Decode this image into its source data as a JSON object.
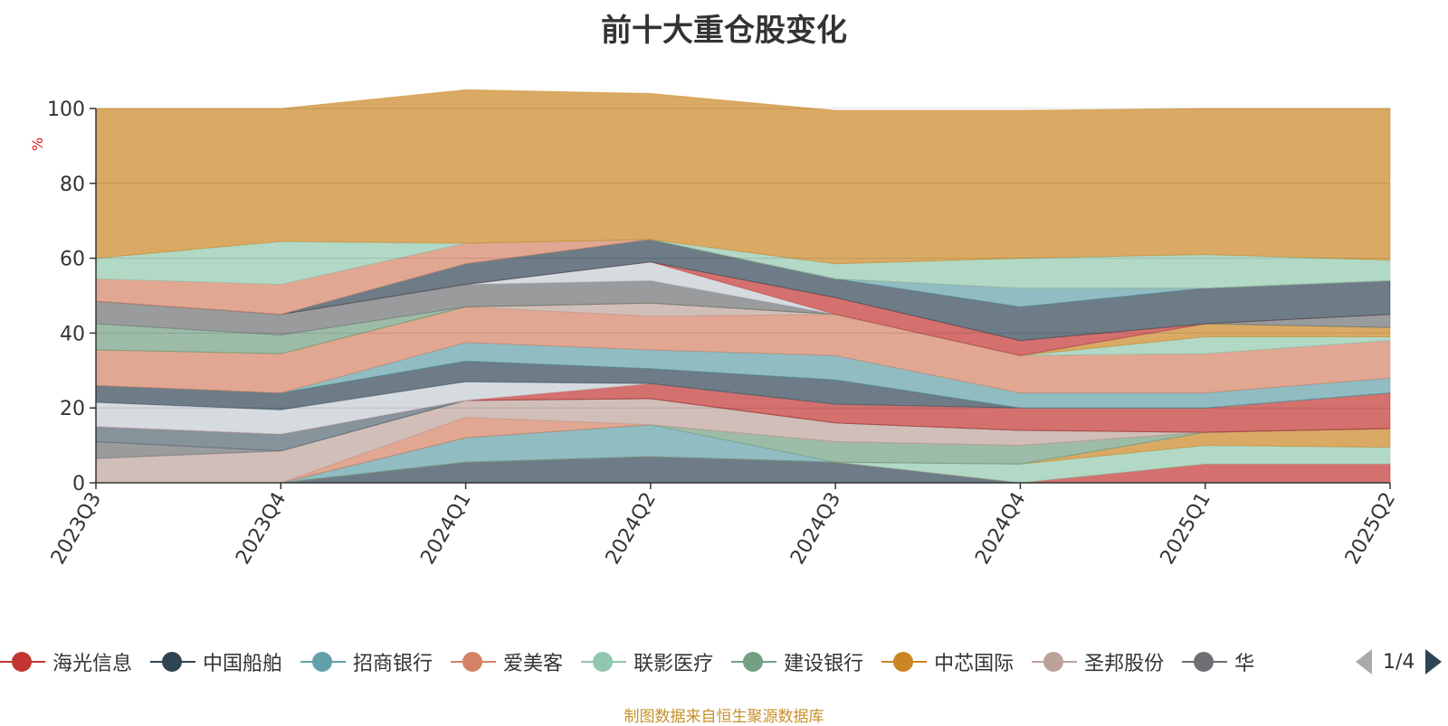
{
  "title": "前十大重仓股变化",
  "unit": "%",
  "footer": "制图数据来自恒生聚源数据库",
  "pager": "1/4",
  "chart_data": {
    "type": "area",
    "stacked": true,
    "ylim": [
      0,
      100
    ],
    "yticks": [
      0,
      20,
      40,
      60,
      80,
      100
    ],
    "categories": [
      "2023Q3",
      "2023Q4",
      "2024Q1",
      "2024Q2",
      "2024Q3",
      "2024Q4",
      "2025Q1",
      "2025Q2"
    ],
    "series": [
      {
        "name": "中国船舶",
        "color": "#2f4554",
        "values": [
          0,
          0,
          5.5,
          7,
          5.5,
          0,
          0,
          0
        ]
      },
      {
        "name": "海光信息",
        "color": "#c23531",
        "values": [
          0,
          0,
          0,
          0,
          0,
          0,
          5,
          5
        ]
      },
      {
        "name": "联影医疗",
        "color": "#91c7ae",
        "values": [
          0,
          0,
          0,
          0,
          0,
          5,
          5,
          4.5
        ]
      },
      {
        "name": "中芯国际",
        "color": "#ca8622",
        "values": [
          0,
          0,
          0,
          0,
          0,
          0,
          3.5,
          5
        ]
      },
      {
        "name": "招商银行",
        "color": "#61a0a8",
        "values": [
          0,
          0,
          6.5,
          8.5,
          0,
          0,
          0,
          0
        ]
      },
      {
        "name": "建设银行",
        "color": "#749f83",
        "values": [
          0,
          0,
          0,
          0,
          5.5,
          5,
          0,
          0
        ]
      },
      {
        "name": "爱美客",
        "color": "#d48265",
        "values": [
          0,
          0,
          5.5,
          0,
          0,
          0,
          0,
          0
        ]
      },
      {
        "name": "圣邦股份",
        "color": "#bda29a",
        "values": [
          6.5,
          8.5,
          4.5,
          7,
          5,
          4,
          0,
          0
        ]
      },
      {
        "name": "华",
        "color": "#6e7074",
        "values": [
          4.5,
          0,
          0,
          0,
          0,
          0,
          0,
          0
        ]
      },
      {
        "name": "",
        "color": "#546570",
        "values": [
          4,
          4.5,
          0,
          0,
          0,
          0,
          0,
          0
        ]
      },
      {
        "name": "",
        "color": "#c23531",
        "values": [
          0,
          0,
          0,
          4,
          5,
          6,
          6.5,
          9.5
        ]
      },
      {
        "name": "",
        "color": "#c4ccd3",
        "values": [
          6.5,
          6.5,
          5,
          0,
          0,
          0,
          0,
          0
        ]
      },
      {
        "name": "",
        "color": "#2f4554",
        "values": [
          4.5,
          4.5,
          5.5,
          4,
          6.5,
          0,
          0,
          0
        ]
      },
      {
        "name": "",
        "color": "#61a0a8",
        "values": [
          0,
          0,
          5,
          5,
          6.5,
          4,
          4,
          4
        ]
      },
      {
        "name": "",
        "color": "#d48265",
        "values": [
          9.5,
          10.5,
          9.5,
          9,
          11,
          10,
          10.5,
          10
        ]
      },
      {
        "name": "",
        "color": "#bda29a",
        "values": [
          0,
          0,
          0,
          3.5,
          0,
          0,
          0,
          0
        ]
      },
      {
        "name": "",
        "color": "#91c7ae",
        "values": [
          0,
          0,
          0,
          0,
          0,
          0,
          4.5,
          1
        ]
      },
      {
        "name": "",
        "color": "#ca8622",
        "values": [
          0,
          0,
          0,
          0,
          0,
          0,
          3.5,
          2.5
        ]
      },
      {
        "name": "",
        "color": "#749f83",
        "values": [
          7,
          5,
          0,
          0,
          0,
          0,
          0,
          0
        ]
      },
      {
        "name": "",
        "color": "#6e7074",
        "values": [
          6,
          5.5,
          6,
          6,
          0,
          0,
          0,
          3.5
        ]
      },
      {
        "name": "",
        "color": "#c4ccd3",
        "values": [
          0,
          0,
          0,
          5,
          0,
          0,
          0,
          0
        ]
      },
      {
        "name": "",
        "color": "#c23531",
        "values": [
          0,
          0,
          0,
          0,
          4.5,
          4,
          0,
          0
        ]
      },
      {
        "name": "",
        "color": "#2f4554",
        "values": [
          0,
          0,
          5.5,
          6,
          5,
          9,
          9.5,
          9
        ]
      },
      {
        "name": "",
        "color": "#61a0a8",
        "values": [
          0,
          0,
          0,
          0,
          0,
          5,
          0,
          0
        ]
      },
      {
        "name": "",
        "color": "#d48265",
        "values": [
          6,
          8,
          5.5,
          0,
          0,
          0,
          0,
          0
        ]
      },
      {
        "name": "",
        "color": "#91c7ae",
        "values": [
          5.5,
          11.5,
          0,
          0,
          4,
          8,
          9,
          5.5
        ]
      },
      {
        "name": "",
        "color": "#ca8622",
        "values": [
          40,
          35.5,
          41,
          39,
          41,
          39.5,
          39,
          40.5
        ]
      }
    ]
  },
  "legend": {
    "items": [
      {
        "label": "海光信息",
        "color": "#c23531"
      },
      {
        "label": "中国船舶",
        "color": "#2f4554"
      },
      {
        "label": "招商银行",
        "color": "#61a0a8"
      },
      {
        "label": "爱美客",
        "color": "#d48265"
      },
      {
        "label": "联影医疗",
        "color": "#91c7ae"
      },
      {
        "label": "建设银行",
        "color": "#749f83"
      },
      {
        "label": "中芯国际",
        "color": "#ca8622"
      },
      {
        "label": "圣邦股份",
        "color": "#bda29a"
      },
      {
        "label": "华",
        "color": "#6e7074"
      }
    ]
  }
}
